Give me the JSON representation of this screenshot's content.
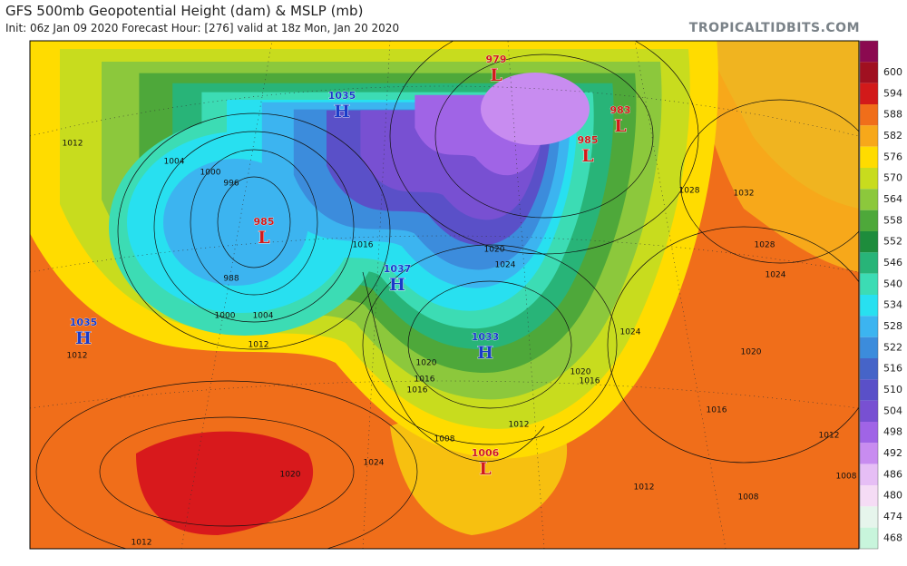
{
  "header": {
    "title": "GFS 500mb Geopotential Height (dam) & MSLP (mb)",
    "subtitle": "Init: 06z Jan 09 2020   Forecast Hour: [276]   valid at 18z Mon, Jan 20 2020",
    "source": "TROPICALTIDBITS.COM"
  },
  "colorbar": {
    "top_color": "#8b0a50",
    "levels": [
      600,
      594,
      588,
      582,
      576,
      570,
      564,
      558,
      552,
      546,
      540,
      534,
      528,
      522,
      516,
      510,
      504,
      498,
      492,
      486,
      480,
      474,
      468
    ],
    "colors": [
      "#a01020",
      "#d21a1a",
      "#f06e1a",
      "#f7a81a",
      "#ffdc00",
      "#c8dc1e",
      "#8cc83c",
      "#4ea83a",
      "#1e8c3c",
      "#28b478",
      "#3cdcb4",
      "#28e0f0",
      "#3cb4f0",
      "#3c8cdc",
      "#4664c8",
      "#5a50c8",
      "#7850d2",
      "#a064e6",
      "#c88cf0",
      "#e6bef5",
      "#f5dcf5",
      "#e6f5ec",
      "#c8f5dc"
    ]
  },
  "pressure_centers": [
    {
      "letter": "H",
      "pressure": 1035
    },
    {
      "letter": "H",
      "pressure": 1037
    },
    {
      "letter": "H",
      "pressure": 1033
    },
    {
      "letter": "H",
      "pressure": 1035
    },
    {
      "letter": "L",
      "pressure": 979
    },
    {
      "letter": "L",
      "pressure": 983
    },
    {
      "letter": "L",
      "pressure": 985
    },
    {
      "letter": "L",
      "pressure": 985
    },
    {
      "letter": "L",
      "pressure": 1006
    }
  ],
  "isobar_labels": [
    1012,
    1004,
    1000,
    996,
    988,
    1000,
    1004,
    1012,
    1016,
    1020,
    1016,
    1012,
    1008,
    1012,
    1020,
    1024,
    1028,
    1024,
    1020,
    1016,
    1032,
    1028,
    1024,
    1020,
    1016,
    1012,
    1008,
    1012,
    1008,
    1024,
    1020,
    1016,
    1012
  ]
}
